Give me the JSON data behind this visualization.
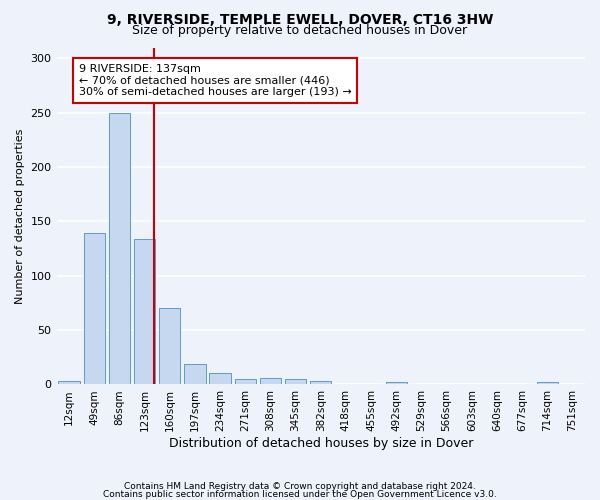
{
  "title1": "9, RIVERSIDE, TEMPLE EWELL, DOVER, CT16 3HW",
  "title2": "Size of property relative to detached houses in Dover",
  "xlabel": "Distribution of detached houses by size in Dover",
  "ylabel": "Number of detached properties",
  "footer1": "Contains HM Land Registry data © Crown copyright and database right 2024.",
  "footer2": "Contains public sector information licensed under the Open Government Licence v3.0.",
  "bar_labels": [
    "12sqm",
    "49sqm",
    "86sqm",
    "123sqm",
    "160sqm",
    "197sqm",
    "234sqm",
    "271sqm",
    "308sqm",
    "345sqm",
    "382sqm",
    "418sqm",
    "455sqm",
    "492sqm",
    "529sqm",
    "566sqm",
    "603sqm",
    "640sqm",
    "677sqm",
    "714sqm",
    "751sqm"
  ],
  "bar_values": [
    3,
    139,
    250,
    134,
    70,
    19,
    11,
    5,
    6,
    5,
    3,
    0,
    0,
    2,
    0,
    0,
    0,
    0,
    0,
    2,
    0
  ],
  "bar_color": "#c5d8f0",
  "bar_edge_color": "#5b9bd5",
  "vline_color": "#cc0000",
  "vline_x": 3.38,
  "annotation_line1": "9 RIVERSIDE: 137sqm",
  "annotation_line2": "← 70% of detached houses are smaller (446)",
  "annotation_line3": "30% of semi-detached houses are larger (193) →",
  "annotation_box_color": "#ffffff",
  "annotation_box_edge": "#cc0000",
  "ylim_max": 310,
  "yticks": [
    0,
    50,
    100,
    150,
    200,
    250,
    300
  ],
  "background_color": "#eef2fa",
  "grid_color": "#ffffff",
  "title1_fontsize": 10,
  "title2_fontsize": 9,
  "xlabel_fontsize": 9,
  "ylabel_fontsize": 8,
  "tick_fontsize": 7.5,
  "annotation_fontsize": 8,
  "footer_fontsize": 6.5
}
